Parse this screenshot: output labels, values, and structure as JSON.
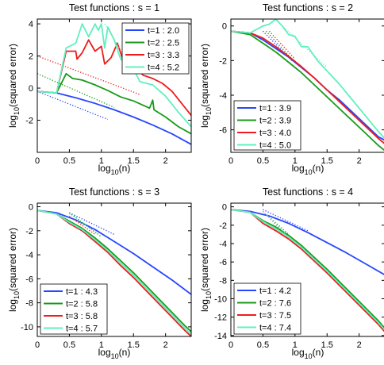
{
  "chart_data": [
    {
      "type": "line",
      "title": "Test functions : s = 1",
      "xlabel": "log10(n)",
      "ylabel": "log10(squared error)",
      "xlim": [
        0,
        2.4
      ],
      "ylim": [
        -4,
        4.3
      ],
      "xticks": [
        0,
        0.5,
        1,
        1.5,
        2
      ],
      "yticks": [
        -2,
        0,
        2,
        4
      ],
      "legend_position": "top-right",
      "series": [
        {
          "name": "t=1 : 2.0",
          "color": "#2746ff",
          "x": [
            0,
            0.3,
            0.6,
            0.9,
            1.2,
            1.5,
            1.8,
            2.1,
            2.4
          ],
          "y": [
            -0.2,
            -0.3,
            -0.6,
            -0.95,
            -1.35,
            -1.8,
            -2.3,
            -2.85,
            -3.5
          ],
          "fit": {
            "x": [
              0,
              1.1
            ],
            "y": [
              -0.2,
              -1.95
            ]
          }
        },
        {
          "name": "t=2 : 2.5",
          "color": "#199a19",
          "x": [
            0,
            0.3,
            0.45,
            0.55,
            0.7,
            0.9,
            1.1,
            1.3,
            1.5,
            1.75,
            1.8,
            1.82,
            2.0,
            2.2,
            2.4
          ],
          "y": [
            -0.2,
            -0.3,
            0.9,
            0.6,
            0.5,
            0.2,
            -0.15,
            -0.55,
            -0.8,
            -1.25,
            -0.75,
            -1.35,
            -1.8,
            -2.4,
            -2.85
          ],
          "fit": {
            "x": [
              0,
              1.2
            ],
            "y": [
              0.9,
              -1.2
            ]
          }
        },
        {
          "name": "t=3 : 3.3",
          "color": "#ee1c1c",
          "x": [
            0,
            0.3,
            0.45,
            0.6,
            0.62,
            0.7,
            0.8,
            0.9,
            1.0,
            1.05,
            1.15,
            1.25,
            1.35,
            1.5,
            1.65,
            1.8,
            1.95,
            2.1,
            2.4
          ],
          "y": [
            -0.2,
            -0.3,
            2.3,
            2.3,
            1.8,
            2.2,
            3.0,
            2.3,
            2.6,
            1.5,
            1.9,
            2.8,
            1.6,
            1.4,
            0.8,
            0.6,
            0.3,
            -0.2,
            -1.7
          ],
          "fit": {
            "x": [
              0,
              1.6
            ],
            "y": [
              2.0,
              -0.4
            ]
          }
        },
        {
          "name": "t=4 : 5.2",
          "color": "#5ff0c0",
          "x": [
            0,
            0.3,
            0.45,
            0.6,
            0.7,
            0.8,
            0.9,
            0.95,
            1.0,
            1.05,
            1.1,
            1.2,
            1.3,
            1.5,
            1.6,
            1.8,
            2.0,
            2.2,
            2.4
          ],
          "y": [
            -0.2,
            -0.3,
            2.5,
            2.8,
            4.0,
            3.2,
            4.0,
            3.6,
            4.0,
            2.5,
            3.8,
            3.0,
            1.8,
            1.2,
            0.4,
            0.2,
            -0.5,
            -1.5,
            -2.4
          ],
          "fit": {
            "x": [
              1.05,
              1.5
            ],
            "y": [
              4.0,
              1.1
            ]
          }
        }
      ]
    },
    {
      "type": "line",
      "title": "Test functions : s = 2",
      "xlabel": "log10(n)",
      "ylabel": "log10(squared error)",
      "xlim": [
        0,
        2.4
      ],
      "ylim": [
        -7.3,
        0.4
      ],
      "xticks": [
        0,
        0.5,
        1,
        1.5,
        2
      ],
      "yticks": [
        -6,
        -4,
        -2,
        0
      ],
      "legend_position": "bottom-left",
      "series": [
        {
          "name": "t=1 : 3.9",
          "color": "#2746ff",
          "x": [
            0,
            0.3,
            0.5,
            0.7,
            0.9,
            1.1,
            1.3,
            1.5,
            1.7,
            1.9,
            2.1,
            2.3,
            2.4
          ],
          "y": [
            -0.3,
            -0.4,
            -0.8,
            -1.3,
            -1.8,
            -2.4,
            -3.0,
            -3.7,
            -4.3,
            -5.0,
            -5.7,
            -6.4,
            -6.6
          ],
          "fit": {
            "x": [
              0.5,
              0.95
            ],
            "y": [
              -0.3,
              -2.0
            ]
          }
        },
        {
          "name": "t=2 : 3.9",
          "color": "#199a19",
          "x": [
            0,
            0.3,
            0.5,
            0.7,
            0.9,
            1.1,
            1.3,
            1.5,
            1.7,
            1.9,
            2.1,
            2.3,
            2.4
          ],
          "y": [
            -0.3,
            -0.5,
            -1.0,
            -1.5,
            -2.1,
            -2.7,
            -3.4,
            -4.1,
            -4.8,
            -5.5,
            -6.2,
            -6.9,
            -7.2
          ],
          "fit": {
            "x": [
              0.55,
              0.95
            ],
            "y": [
              -0.3,
              -1.9
            ]
          }
        },
        {
          "name": "t=3 : 4.0",
          "color": "#ee1c1c",
          "x": [
            0,
            0.3,
            0.5,
            0.7,
            0.9,
            1.1,
            1.3,
            1.5,
            1.7,
            1.9,
            2.1,
            2.3,
            2.4
          ],
          "y": [
            -0.3,
            -0.4,
            -0.7,
            -1.2,
            -1.75,
            -2.35,
            -3.0,
            -3.7,
            -4.4,
            -5.1,
            -5.8,
            -6.5,
            -6.8
          ],
          "fit": {
            "x": [
              0.6,
              1.0
            ],
            "y": [
              -0.3,
              -1.9
            ]
          }
        },
        {
          "name": "t=4 : 5.0",
          "color": "#5ff0c0",
          "x": [
            0,
            0.3,
            0.5,
            0.6,
            0.7,
            0.8,
            0.9,
            1.0,
            1.1,
            1.2,
            1.35,
            1.5,
            1.7,
            1.9,
            2.1,
            2.3,
            2.4
          ],
          "y": [
            -0.3,
            -0.4,
            0.0,
            0.1,
            0.4,
            0.0,
            -0.5,
            -0.6,
            -1.2,
            -1.2,
            -2.0,
            -2.6,
            -3.4,
            -4.3,
            -5.2,
            -6.1,
            -6.5
          ],
          "fit": {
            "x": [
              0.7,
              1.5
            ],
            "y": [
              0.35,
              -2.4
            ]
          }
        }
      ]
    },
    {
      "type": "line",
      "title": "Test functions : s = 3",
      "xlabel": "log10(n)",
      "ylabel": "log10(squared error)",
      "xlim": [
        0,
        2.4
      ],
      "ylim": [
        -10.8,
        0.3
      ],
      "xticks": [
        0,
        0.5,
        1,
        1.5,
        2
      ],
      "yticks": [
        -10,
        -8,
        -6,
        -4,
        -2,
        0
      ],
      "legend_position": "bottom-left",
      "series": [
        {
          "name": "t=1 : 4.3",
          "color": "#2746ff",
          "x": [
            0,
            0.3,
            0.6,
            0.9,
            1.2,
            1.5,
            1.8,
            2.1,
            2.4
          ],
          "y": [
            -0.3,
            -0.5,
            -1.1,
            -1.9,
            -2.9,
            -3.9,
            -5.0,
            -6.1,
            -7.3
          ],
          "fit": {
            "x": [
              0.5,
              1.2
            ],
            "y": [
              -0.5,
              -2.3
            ]
          }
        },
        {
          "name": "t=2 : 5.8",
          "color": "#199a19",
          "x": [
            0,
            0.3,
            0.5,
            0.7,
            0.9,
            1.1,
            1.3,
            1.5,
            1.7,
            1.9,
            2.1,
            2.3,
            2.4
          ],
          "y": [
            -0.3,
            -0.6,
            -1.2,
            -1.8,
            -2.6,
            -3.5,
            -4.5,
            -5.5,
            -6.6,
            -7.7,
            -8.8,
            -9.9,
            -10.4
          ],
          "fit": {
            "x": [
              0.5,
              1.0
            ],
            "y": [
              -0.5,
              -2.5
            ]
          }
        },
        {
          "name": "t=3 : 5.8",
          "color": "#ee1c1c",
          "x": [
            0,
            0.3,
            0.5,
            0.7,
            0.9,
            1.1,
            1.3,
            1.5,
            1.7,
            1.9,
            2.1,
            2.3,
            2.4
          ],
          "y": [
            -0.3,
            -0.6,
            -1.4,
            -2.0,
            -2.9,
            -3.8,
            -4.9,
            -5.9,
            -7.0,
            -8.1,
            -9.2,
            -10.3,
            -10.8
          ],
          "fit": {
            "x": [
              0.5,
              0.9
            ],
            "y": [
              -0.8,
              -2.3
            ]
          }
        },
        {
          "name": "t=4 : 5.7",
          "color": "#5ff0c0",
          "x": [
            0,
            0.3,
            0.5,
            0.7,
            0.9,
            1.1,
            1.3,
            1.5,
            1.7,
            1.9,
            2.1,
            2.3,
            2.4
          ],
          "y": [
            -0.3,
            -0.6,
            -1.3,
            -1.9,
            -2.75,
            -3.65,
            -4.7,
            -5.7,
            -6.8,
            -7.9,
            -9.0,
            -10.1,
            -10.6
          ],
          "fit": {
            "x": [
              0.5,
              0.95
            ],
            "y": [
              -0.6,
              -2.3
            ]
          }
        }
      ]
    },
    {
      "type": "line",
      "title": "Test functions : s = 4",
      "xlabel": "log10(n)",
      "ylabel": "log10(squared error)",
      "xlim": [
        0,
        2.4
      ],
      "ylim": [
        -14.1,
        0.4
      ],
      "xticks": [
        0,
        0.5,
        1,
        1.5,
        2
      ],
      "yticks": [
        -14,
        -12,
        -10,
        -8,
        -6,
        -4,
        -2,
        0
      ],
      "legend_position": "bottom-left",
      "series": [
        {
          "name": "t=1 : 4.2",
          "color": "#2746ff",
          "x": [
            0,
            0.3,
            0.6,
            0.9,
            1.2,
            1.5,
            1.8,
            2.1,
            2.4
          ],
          "y": [
            -0.3,
            -0.5,
            -1.0,
            -1.8,
            -2.8,
            -3.9,
            -5.0,
            -6.2,
            -7.4
          ],
          "fit": {
            "x": [
              0.5,
              1.2
            ],
            "y": [
              -0.3,
              -2.6
            ]
          }
        },
        {
          "name": "t=2 : 7.6",
          "color": "#199a19",
          "x": [
            0,
            0.3,
            0.5,
            0.7,
            0.9,
            1.1,
            1.3,
            1.5,
            1.7,
            1.9,
            2.1,
            2.3,
            2.4
          ],
          "y": [
            -0.3,
            -0.6,
            -1.5,
            -2.2,
            -3.1,
            -4.2,
            -5.5,
            -6.8,
            -8.2,
            -9.6,
            -11.0,
            -12.4,
            -13.2
          ],
          "fit": {
            "x": [
              0.5,
              0.9
            ],
            "y": [
              -0.5,
              -3.0
            ]
          }
        },
        {
          "name": "t=3 : 7.5",
          "color": "#ee1c1c",
          "x": [
            0,
            0.3,
            0.5,
            0.7,
            0.9,
            1.1,
            1.3,
            1.5,
            1.7,
            1.9,
            2.1,
            2.3,
            2.4
          ],
          "y": [
            -0.3,
            -0.6,
            -1.8,
            -2.6,
            -3.5,
            -4.6,
            -5.9,
            -7.2,
            -8.6,
            -10.0,
            -11.4,
            -12.8,
            -13.6
          ],
          "fit": {
            "x": [
              0.5,
              0.85
            ],
            "y": [
              -0.5,
              -3.0
            ]
          }
        },
        {
          "name": "t=4 : 7.4",
          "color": "#5ff0c0",
          "x": [
            0,
            0.3,
            0.5,
            0.7,
            0.9,
            1.1,
            1.3,
            1.5,
            1.7,
            1.9,
            2.1,
            2.3,
            2.4
          ],
          "y": [
            -0.3,
            -0.6,
            -1.6,
            -2.4,
            -3.3,
            -4.4,
            -5.7,
            -7.0,
            -8.4,
            -9.8,
            -11.2,
            -12.6,
            -13.4
          ],
          "fit": {
            "x": [
              0.5,
              0.85
            ],
            "y": [
              -0.5,
              -2.9
            ]
          }
        }
      ]
    }
  ]
}
